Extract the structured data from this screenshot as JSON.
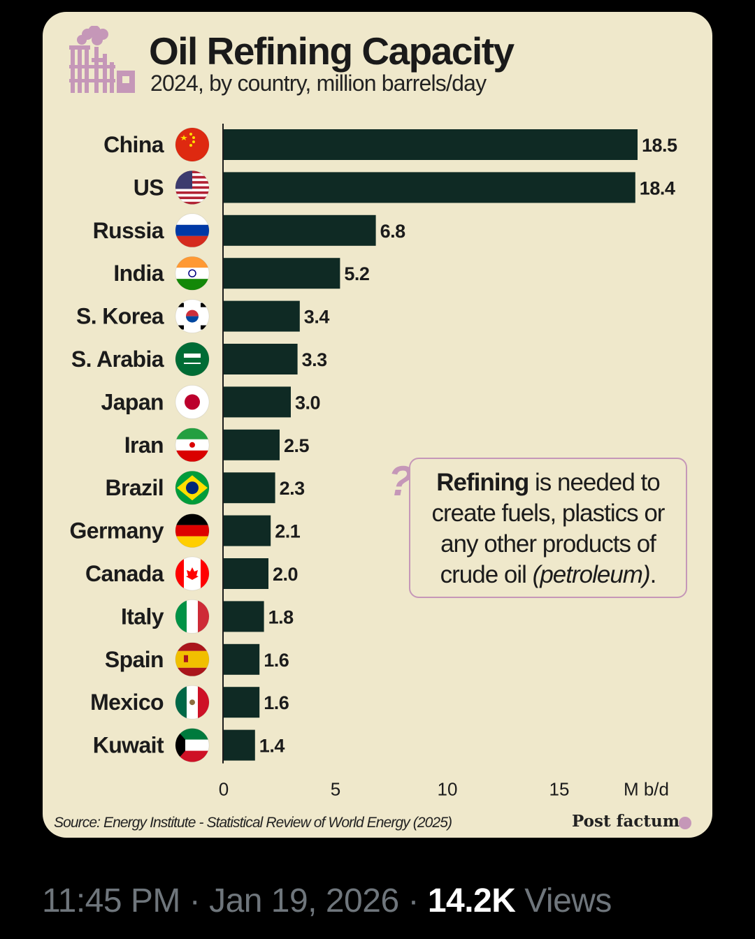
{
  "chart_data": {
    "type": "bar",
    "orientation": "horizontal",
    "title": "Oil Refining Capacity",
    "subtitle": "2024, by country, million barrels/day",
    "categories": [
      "China",
      "US",
      "Russia",
      "India",
      "S. Korea",
      "S. Arabia",
      "Japan",
      "Iran",
      "Brazil",
      "Germany",
      "Canada",
      "Italy",
      "Spain",
      "Mexico",
      "Kuwait"
    ],
    "values": [
      18.5,
      18.4,
      6.8,
      5.2,
      3.4,
      3.3,
      3.0,
      2.5,
      2.3,
      2.1,
      2.0,
      1.8,
      1.6,
      1.6,
      1.4
    ],
    "value_labels": [
      "18.5",
      "18.4",
      "6.8",
      "5.2",
      "3.4",
      "3.3",
      "3.0",
      "2.5",
      "2.3",
      "2.1",
      "2.0",
      "1.8",
      "1.6",
      "1.6",
      "1.4"
    ],
    "flags": [
      "china-flag",
      "us-flag",
      "russia-flag",
      "india-flag",
      "south-korea-flag",
      "saudi-arabia-flag",
      "japan-flag",
      "iran-flag",
      "brazil-flag",
      "germany-flag",
      "canada-flag",
      "italy-flag",
      "spain-flag",
      "mexico-flag",
      "kuwait-flag"
    ],
    "x_ticks": [
      0,
      5,
      10,
      15
    ],
    "xlabel": "M b/d",
    "xlim": [
      0,
      19
    ],
    "grid": false,
    "bar_color": "#0f2a24"
  },
  "note": {
    "bold": "Refining",
    "text1": " is needed to create fuels, plastics or any other products of crude oil ",
    "italic": "(petroleum)",
    "text2": ".",
    "icon": "question-mark"
  },
  "source": "Source: Energy Institute - Statistical Review of World Energy (2025)",
  "brand": "Post factum",
  "colors": {
    "background": "#efe8cb",
    "accent": "#c597b8",
    "bar": "#0f2a24"
  },
  "tweet": {
    "time": "11:45 PM",
    "separator": "·",
    "date": "Jan 19, 2026",
    "views_count": "14.2K",
    "views_label": "Views"
  }
}
